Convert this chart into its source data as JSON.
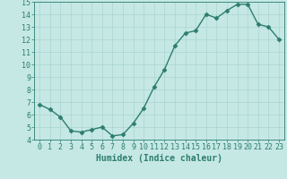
{
  "x": [
    0,
    1,
    2,
    3,
    4,
    5,
    6,
    7,
    8,
    9,
    10,
    11,
    12,
    13,
    14,
    15,
    16,
    17,
    18,
    19,
    20,
    21,
    22,
    23
  ],
  "y": [
    6.8,
    6.4,
    5.8,
    4.7,
    4.6,
    4.8,
    5.0,
    4.3,
    4.4,
    5.3,
    6.5,
    8.2,
    9.6,
    11.5,
    12.5,
    12.7,
    14.0,
    13.7,
    14.3,
    14.8,
    14.8,
    13.2,
    13.0,
    12.0
  ],
  "line_color": "#2d7d6e",
  "marker": "D",
  "marker_size": 2.5,
  "bg_color": "#c5e8e5",
  "grid_color": "#aad4d0",
  "xlabel": "Humidex (Indice chaleur)",
  "ylim": [
    4,
    15
  ],
  "xlim_min": -0.5,
  "xlim_max": 23.5,
  "yticks": [
    4,
    5,
    6,
    7,
    8,
    9,
    10,
    11,
    12,
    13,
    14,
    15
  ],
  "xticks": [
    0,
    1,
    2,
    3,
    4,
    5,
    6,
    7,
    8,
    9,
    10,
    11,
    12,
    13,
    14,
    15,
    16,
    17,
    18,
    19,
    20,
    21,
    22,
    23
  ],
  "tick_color": "#2d7d6e",
  "label_color": "#2d7d6e",
  "xlabel_fontsize": 7,
  "tick_fontsize": 6,
  "linewidth": 1.0
}
